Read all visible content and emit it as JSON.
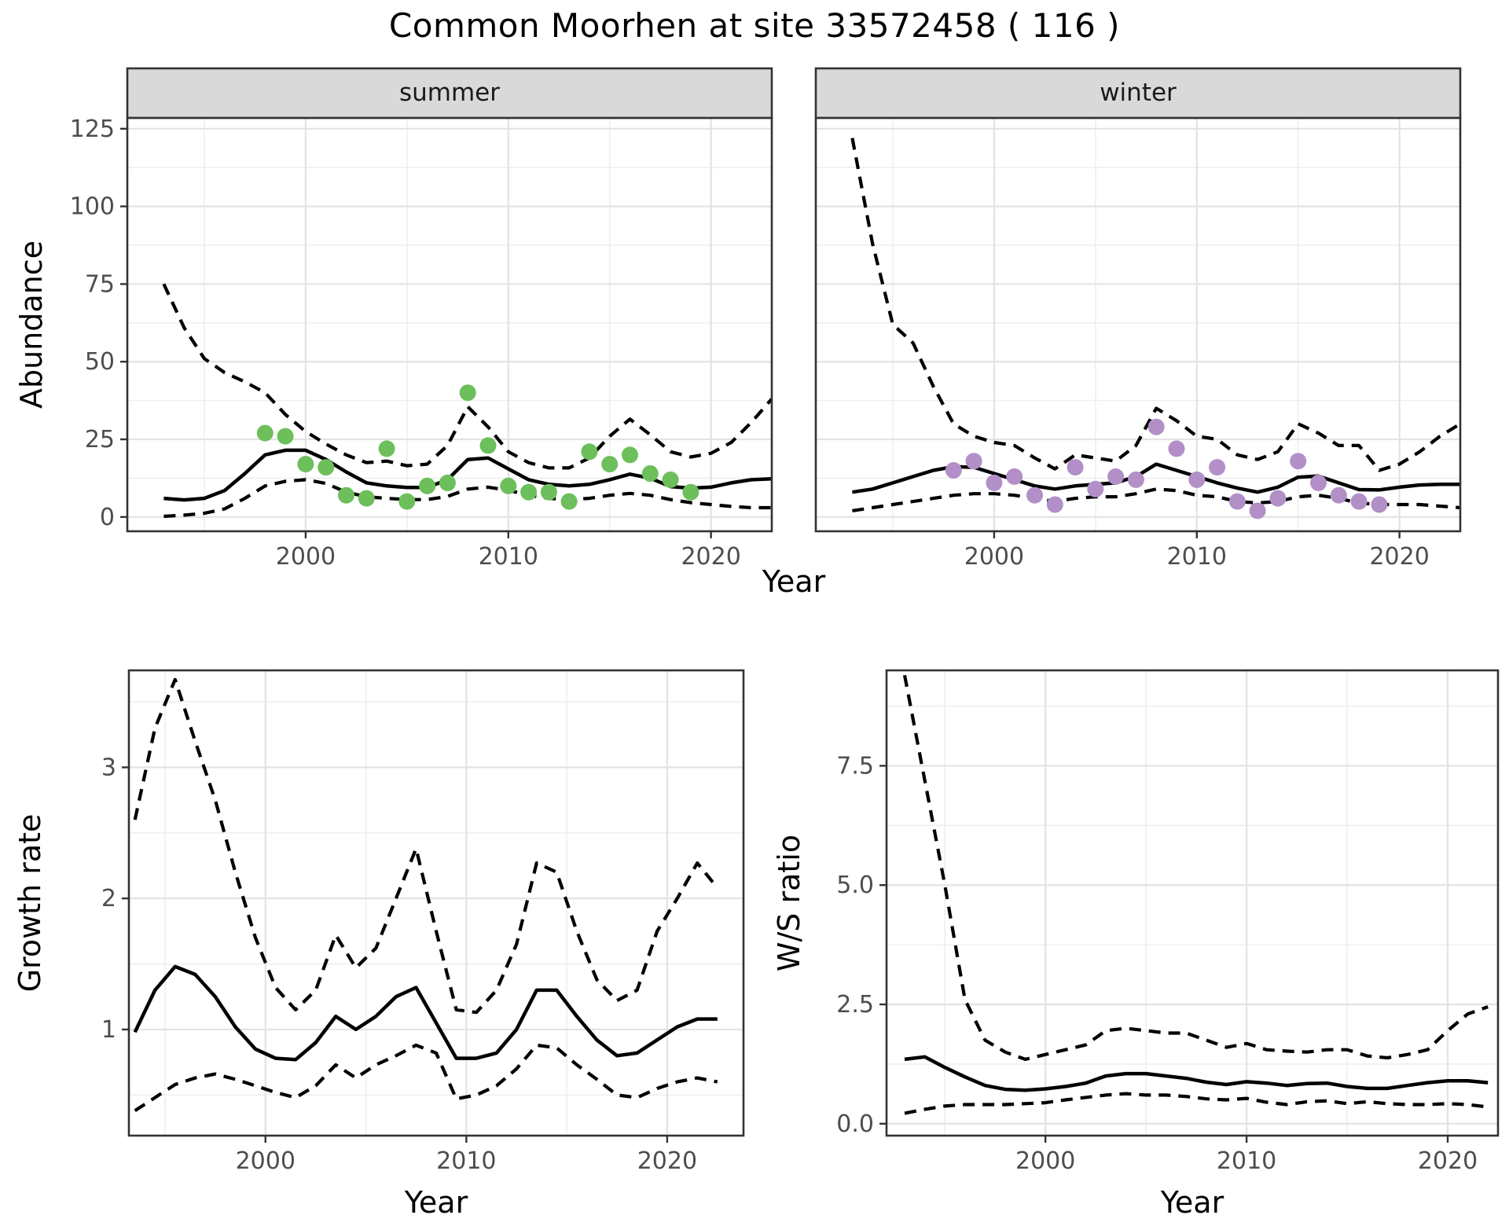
{
  "title": "Common Moorhen at site 33572458 ( 116 )",
  "labels": {
    "year": "Year",
    "abundance": "Abundance",
    "growth": "Growth rate",
    "ws": "W/S ratio",
    "summer": "summer",
    "winter": "winter"
  },
  "colors": {
    "summer_point": "#6cbf5a",
    "winter_point": "#b28fc7",
    "line": "#000000",
    "grid_major": "#e3e3e3",
    "grid_minor": "#efefef",
    "panel_border": "#333333",
    "strip_bg": "#d9d9d9",
    "tick_label": "#4d4d4d",
    "background": "#ffffff"
  },
  "chart_data": [
    {
      "type": "line",
      "facet_label": "summer",
      "title": "Common Moorhen abundance, summer facet",
      "xlabel": "Year",
      "ylabel": "Abundance",
      "xlim": [
        1991.2,
        2023.0
      ],
      "ylim": [
        -4.6,
        128.5
      ],
      "xticks": [
        2000,
        2010,
        2020
      ],
      "xtick_labels": [
        "2000",
        "2010",
        "2020"
      ],
      "xminor": [
        1995,
        2005,
        2015
      ],
      "yticks": [
        0,
        25,
        50,
        75,
        100,
        125
      ],
      "ytick_labels": [
        "0",
        "25",
        "50",
        "75",
        "100",
        "125"
      ],
      "yminor": [
        12.5,
        37.5,
        62.5,
        87.5,
        112.5
      ],
      "x": [
        1993,
        1994,
        1995,
        1996,
        1997,
        1998,
        1999,
        2000,
        2001,
        2002,
        2003,
        2004,
        2005,
        2006,
        2007,
        2008,
        2009,
        2010,
        2011,
        2012,
        2013,
        2014,
        2015,
        2016,
        2017,
        2018,
        2019,
        2020,
        2021,
        2022,
        2023
      ],
      "series": [
        {
          "name": "upper_ci",
          "style": "dashed",
          "y": [
            75,
            61,
            51,
            46.5,
            43.5,
            40,
            33,
            27.5,
            23.5,
            20,
            17.5,
            18,
            16.5,
            17,
            23,
            35.5,
            29,
            21,
            17.5,
            15.8,
            15.8,
            19,
            26,
            31.5,
            26.5,
            21,
            19.3,
            20.5,
            24,
            30.5,
            38
          ]
        },
        {
          "name": "lower_ci",
          "style": "dashed",
          "y": [
            0.2,
            0.6,
            1.2,
            2.6,
            6,
            10,
            11.5,
            12,
            10.8,
            8,
            6.5,
            6,
            5.6,
            5.6,
            6.6,
            9,
            9.6,
            8.6,
            7,
            6,
            5.6,
            6,
            7,
            7.6,
            7,
            5.6,
            4.6,
            4,
            3.4,
            3,
            3
          ]
        },
        {
          "name": "mean",
          "style": "solid",
          "y": [
            6,
            5.5,
            6,
            8.5,
            14,
            20,
            21.5,
            21.5,
            18.5,
            14.5,
            11,
            10,
            9.5,
            9.5,
            12,
            18.5,
            19,
            15.5,
            12,
            10.5,
            10,
            10.5,
            12,
            13.8,
            12.5,
            9.8,
            9.3,
            9.6,
            11,
            12,
            12.3
          ]
        }
      ],
      "points": {
        "name": "observed_counts_summer",
        "color_key": "summer_point",
        "x": [
          1998,
          1999,
          2000,
          2001,
          2002,
          2003,
          2004,
          2005,
          2006,
          2007,
          2008,
          2009,
          2010,
          2011,
          2012,
          2013,
          2014,
          2015,
          2016,
          2017,
          2018,
          2019
        ],
        "y": [
          27,
          26,
          17,
          16,
          7,
          6,
          22,
          5,
          10,
          11,
          40,
          23,
          10,
          8,
          8,
          5,
          21,
          17,
          20,
          14,
          12,
          8
        ]
      }
    },
    {
      "type": "line",
      "facet_label": "winter",
      "title": "Common Moorhen abundance, winter facet",
      "xlabel": "Year",
      "ylabel": "Abundance",
      "xlim": [
        1991.2,
        2023.0
      ],
      "ylim": [
        -4.6,
        128.5
      ],
      "xticks": [
        2000,
        2010,
        2020
      ],
      "xtick_labels": [
        "2000",
        "2010",
        "2020"
      ],
      "xminor": [
        1995,
        2005,
        2015
      ],
      "yticks": [
        0,
        25,
        50,
        75,
        100,
        125
      ],
      "ytick_labels": [
        "0",
        "25",
        "50",
        "75",
        "100",
        "125"
      ],
      "yminor": [
        12.5,
        37.5,
        62.5,
        87.5,
        112.5
      ],
      "x": [
        1993,
        1994,
        1995,
        1996,
        1997,
        1998,
        1999,
        2000,
        2001,
        2002,
        2003,
        2004,
        2005,
        2006,
        2007,
        2008,
        2009,
        2010,
        2011,
        2012,
        2013,
        2014,
        2015,
        2016,
        2017,
        2018,
        2019,
        2020,
        2021,
        2022,
        2023
      ],
      "series": [
        {
          "name": "upper_ci",
          "style": "dashed",
          "y": [
            122,
            88,
            62,
            56,
            42,
            30,
            26,
            24,
            23,
            19,
            15.5,
            20,
            19,
            18,
            23,
            35,
            31,
            26,
            25,
            20,
            18.5,
            21,
            30,
            27,
            23,
            23,
            15,
            17,
            21,
            26,
            30
          ]
        },
        {
          "name": "lower_ci",
          "style": "dashed",
          "y": [
            2,
            3,
            4,
            5,
            6,
            7,
            7.5,
            7.5,
            7,
            6,
            5,
            6,
            6.5,
            6.5,
            7.5,
            9,
            8.5,
            7,
            6.5,
            5,
            4.5,
            5,
            6.5,
            7,
            6,
            4.5,
            4,
            4,
            4,
            3.5,
            3
          ]
        },
        {
          "name": "mean",
          "style": "solid",
          "y": [
            8,
            9,
            11,
            13,
            15,
            16.2,
            16,
            14,
            12,
            10,
            9,
            10,
            10.5,
            11,
            13,
            17,
            15,
            13,
            11,
            9.3,
            8,
            9.6,
            12.8,
            13.2,
            11,
            8.8,
            8.7,
            9.6,
            10.3,
            10.5,
            10.5
          ]
        }
      ],
      "points": {
        "name": "observed_counts_winter",
        "color_key": "winter_point",
        "x": [
          1998,
          1999,
          2000,
          2001,
          2002,
          2003,
          2004,
          2005,
          2006,
          2007,
          2008,
          2009,
          2010,
          2011,
          2012,
          2013,
          2014,
          2015,
          2016,
          2017,
          2018,
          2019
        ],
        "y": [
          15,
          18,
          11,
          13,
          7,
          4,
          16,
          9,
          13,
          12,
          29,
          22,
          12,
          16,
          5,
          2,
          6,
          18,
          11,
          7,
          5,
          4
        ]
      }
    },
    {
      "type": "line",
      "facet_label": null,
      "title": "Growth rate",
      "xlabel": "Year",
      "ylabel": "Growth rate",
      "xlim": [
        1993.2,
        2023.8
      ],
      "ylim": [
        0.19,
        3.74
      ],
      "xticks": [
        2000,
        2010,
        2020
      ],
      "xtick_labels": [
        "2000",
        "2010",
        "2020"
      ],
      "xminor": [
        1995,
        2005,
        2015
      ],
      "yticks": [
        1,
        2,
        3
      ],
      "ytick_labels": [
        "1",
        "2",
        "3"
      ],
      "yminor": [
        0.5,
        1.5,
        2.5,
        3.5
      ],
      "x": [
        1993.5,
        1994.5,
        1995.5,
        1996.5,
        1997.5,
        1998.5,
        1999.5,
        2000.5,
        2001.5,
        2002.5,
        2003.5,
        2004.5,
        2005.5,
        2006.5,
        2007.5,
        2008.5,
        2009.5,
        2010.5,
        2011.5,
        2012.5,
        2013.5,
        2014.5,
        2015.5,
        2016.5,
        2017.5,
        2018.5,
        2019.5,
        2020.5,
        2021.5,
        2022.5
      ],
      "series": [
        {
          "name": "upper_ci",
          "style": "dashed",
          "y": [
            2.6,
            3.3,
            3.67,
            3.2,
            2.75,
            2.2,
            1.7,
            1.32,
            1.15,
            1.3,
            1.72,
            1.47,
            1.62,
            2.0,
            2.38,
            1.75,
            1.15,
            1.13,
            1.3,
            1.65,
            2.27,
            2.2,
            1.75,
            1.38,
            1.22,
            1.3,
            1.75,
            2.0,
            2.27,
            2.08
          ]
        },
        {
          "name": "lower_ci",
          "style": "dashed",
          "y": [
            0.38,
            0.48,
            0.58,
            0.63,
            0.66,
            0.62,
            0.57,
            0.52,
            0.48,
            0.57,
            0.73,
            0.63,
            0.73,
            0.8,
            0.88,
            0.82,
            0.47,
            0.5,
            0.57,
            0.7,
            0.88,
            0.86,
            0.73,
            0.62,
            0.5,
            0.48,
            0.55,
            0.6,
            0.63,
            0.6
          ]
        },
        {
          "name": "mean",
          "style": "solid",
          "y": [
            0.98,
            1.3,
            1.48,
            1.42,
            1.25,
            1.02,
            0.85,
            0.78,
            0.77,
            0.9,
            1.1,
            1.0,
            1.1,
            1.25,
            1.32,
            1.05,
            0.78,
            0.78,
            0.82,
            1.0,
            1.3,
            1.3,
            1.1,
            0.92,
            0.8,
            0.82,
            0.92,
            1.02,
            1.08,
            1.08
          ]
        }
      ],
      "points": null
    },
    {
      "type": "line",
      "facet_label": null,
      "title": "Winter/Summer ratio",
      "xlabel": "Year",
      "ylabel": "W/S ratio",
      "xlim": [
        1992.1,
        2022.5
      ],
      "ylim": [
        -0.25,
        9.5
      ],
      "xticks": [
        2000,
        2010,
        2020
      ],
      "xtick_labels": [
        "2000",
        "2010",
        "2020"
      ],
      "xminor": [
        1995,
        2005,
        2015
      ],
      "yticks": [
        0,
        2.5,
        5,
        7.5
      ],
      "ytick_labels": [
        "0.0",
        "2.5",
        "5.0",
        "7.5"
      ],
      "yminor": [
        1.25,
        3.75,
        6.25,
        8.75
      ],
      "x": [
        1993,
        1994,
        1995,
        1996,
        1997,
        1998,
        1999,
        2000,
        2001,
        2002,
        2003,
        2004,
        2005,
        2006,
        2007,
        2008,
        2009,
        2010,
        2011,
        2012,
        2013,
        2014,
        2015,
        2016,
        2017,
        2018,
        2019,
        2020,
        2021,
        2022
      ],
      "series": [
        {
          "name": "upper_ci",
          "style": "dashed",
          "y": [
            9.4,
            7.2,
            5.0,
            2.6,
            1.75,
            1.5,
            1.35,
            1.45,
            1.55,
            1.65,
            1.95,
            2.0,
            1.95,
            1.9,
            1.9,
            1.75,
            1.6,
            1.68,
            1.55,
            1.52,
            1.5,
            1.55,
            1.55,
            1.42,
            1.38,
            1.45,
            1.55,
            1.95,
            2.3,
            2.45
          ]
        },
        {
          "name": "lower_ci",
          "style": "dashed",
          "y": [
            0.22,
            0.3,
            0.37,
            0.4,
            0.4,
            0.4,
            0.42,
            0.44,
            0.5,
            0.55,
            0.6,
            0.63,
            0.6,
            0.6,
            0.57,
            0.52,
            0.5,
            0.53,
            0.45,
            0.4,
            0.46,
            0.48,
            0.42,
            0.46,
            0.42,
            0.4,
            0.4,
            0.42,
            0.4,
            0.35
          ]
        },
        {
          "name": "mean",
          "style": "solid",
          "y": [
            1.35,
            1.4,
            1.18,
            0.98,
            0.8,
            0.72,
            0.7,
            0.73,
            0.78,
            0.85,
            1.0,
            1.05,
            1.05,
            1.0,
            0.95,
            0.87,
            0.82,
            0.88,
            0.85,
            0.8,
            0.84,
            0.85,
            0.78,
            0.74,
            0.74,
            0.8,
            0.86,
            0.9,
            0.9,
            0.86
          ]
        }
      ],
      "points": null
    }
  ]
}
